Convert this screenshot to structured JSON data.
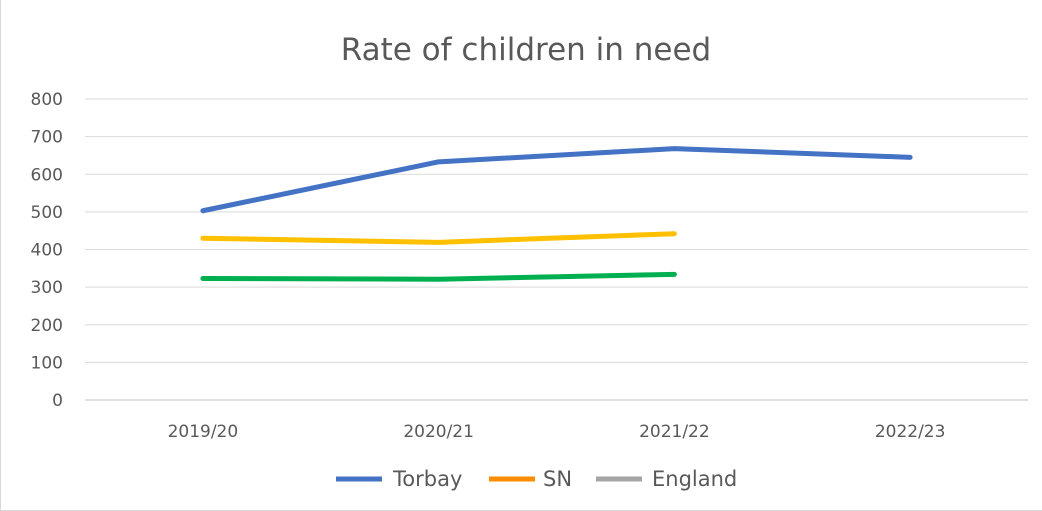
{
  "chart_data": {
    "type": "line",
    "title": "Rate of children in need",
    "xlabel": "",
    "ylabel": "",
    "categories": [
      "2019/20",
      "2020/21",
      "2021/22",
      "2022/23"
    ],
    "ylim": [
      0,
      800
    ],
    "yticks": [
      0,
      100,
      200,
      300,
      400,
      500,
      600,
      700,
      800
    ],
    "grid": true,
    "legend_position": "bottom",
    "series": [
      {
        "name": "Torbay",
        "color": "#4472c4",
        "values": [
          503,
          633,
          668,
          645
        ]
      },
      {
        "name": "SN",
        "color": "#ffc000",
        "values": [
          430,
          419,
          442,
          null
        ]
      },
      {
        "name": "England",
        "color": "#00b050",
        "values": [
          323,
          321,
          334,
          null
        ]
      }
    ],
    "legend": [
      {
        "name": "Torbay",
        "color": "#4472c4"
      },
      {
        "name": "SN",
        "color": "#ff8c00"
      },
      {
        "name": "England",
        "color": "#a5a5a5"
      }
    ]
  }
}
